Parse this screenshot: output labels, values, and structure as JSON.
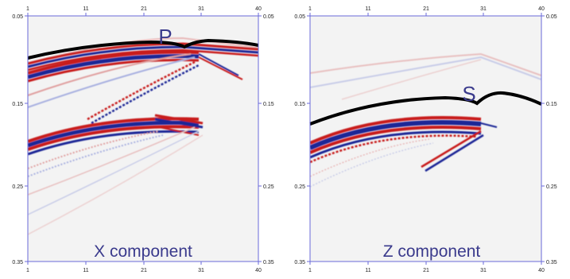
{
  "figure": {
    "panels": [
      {
        "caption": "X component",
        "marker": "P",
        "x_ticks": [
          "1",
          "11",
          "21",
          "31",
          "40"
        ],
        "y_ticks_left": [
          "0.05",
          "0.15",
          "0.25",
          "0.35"
        ],
        "y_ticks_right": [
          "0.05",
          "0.15",
          "0.25",
          "0.35"
        ]
      },
      {
        "caption": "Z component",
        "marker": "S",
        "x_ticks": [
          "1",
          "11",
          "21",
          "31",
          "40"
        ],
        "y_ticks_left": [
          "0.05",
          "0.15",
          "0.25",
          "0.35"
        ],
        "y_ticks_right": [
          "0.05",
          "0.15",
          "0.25",
          "0.35"
        ]
      }
    ],
    "colors": {
      "frame": "#6a6ad8",
      "positive": "#c81e1e",
      "negative": "#1e2896",
      "pick": "#000000",
      "label": "#3a3a8c"
    }
  }
}
